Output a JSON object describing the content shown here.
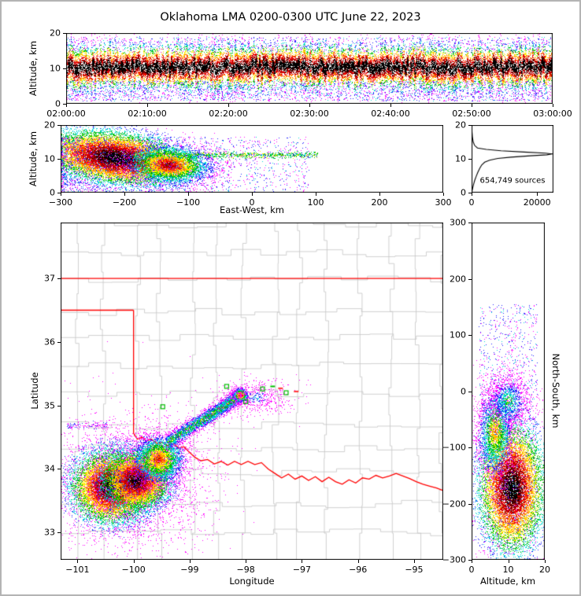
{
  "title": "Oklahoma LMA 0200-0300 UTC June 22, 2023",
  "colors": {
    "background": "#ffffff",
    "page_border": "#b4b4b4",
    "frame": "#000000",
    "county": "#c4c4c4",
    "state_border": "#ff0000",
    "station": "#00bb00",
    "hist_line": "#000000"
  },
  "colormap_bands": [
    {
      "t": 0.45,
      "c": "#000000"
    },
    {
      "t": 0.75,
      "c": "#8b0000"
    },
    {
      "t": 1.05,
      "c": "#ee0000"
    },
    {
      "t": 1.35,
      "c": "#ff8c00"
    },
    {
      "t": 1.65,
      "c": "#ffee00"
    },
    {
      "t": 2.05,
      "c": "#00c000"
    },
    {
      "t": 2.45,
      "c": "#00d8d8"
    },
    {
      "t": 2.85,
      "c": "#2020ff"
    },
    {
      "t": 99,
      "c": "#ff00ff"
    }
  ],
  "chart_data": [
    {
      "id": "time",
      "type": "scatter",
      "xlabel": "",
      "ylabel": "Altitude, km",
      "xlim": [
        0,
        3600
      ],
      "ylim": [
        0,
        20
      ],
      "xticks": [
        {
          "v": 0,
          "label": "02:00:00"
        },
        {
          "v": 600,
          "label": "02:10:00"
        },
        {
          "v": 1200,
          "label": "02:20:00"
        },
        {
          "v": 1800,
          "label": "02:30:00"
        },
        {
          "v": 2400,
          "label": "02:40:00"
        },
        {
          "v": 3000,
          "label": "02:50:00"
        },
        {
          "v": 3600,
          "label": "03:00:00"
        }
      ],
      "yticks": [
        {
          "v": 0,
          "label": "0"
        },
        {
          "v": 10,
          "label": "10"
        },
        {
          "v": 20,
          "label": "20"
        }
      ],
      "clusters": [
        {
          "type": "band",
          "x0": 0,
          "x1": 3600,
          "cy": 10.4,
          "sy": 2.6,
          "cols": 260,
          "count": 30000
        },
        {
          "type": "speck",
          "x0": 0,
          "x1": 3600,
          "y0": 0.8,
          "y1": 6.5,
          "count": 2400,
          "offset": 2.5
        },
        {
          "type": "speck",
          "x0": 0,
          "x1": 3600,
          "y0": 14.5,
          "y1": 18.8,
          "count": 1100,
          "offset": 2.5
        }
      ]
    },
    {
      "id": "ew",
      "type": "scatter",
      "xlabel": "East-West, km",
      "ylabel": "Altitude, km",
      "xlim": [
        -300,
        300
      ],
      "ylim": [
        0,
        20
      ],
      "xticks": [
        {
          "v": -300,
          "label": "−300"
        },
        {
          "v": -200,
          "label": "−200"
        },
        {
          "v": -100,
          "label": "−100"
        },
        {
          "v": 0,
          "label": "0"
        },
        {
          "v": 100,
          "label": "100"
        },
        {
          "v": 200,
          "label": "200"
        },
        {
          "v": 300,
          "label": "300"
        }
      ],
      "yticks": [
        {
          "v": 0,
          "label": "0"
        },
        {
          "v": 10,
          "label": "10"
        },
        {
          "v": 20,
          "label": "20"
        }
      ],
      "clusters": [
        {
          "type": "gauss",
          "cx": -215,
          "cy": 10.3,
          "sx": 55,
          "sy": 3.6,
          "tilt": -0.02,
          "count": 15000
        },
        {
          "type": "gauss",
          "cx": -130,
          "cy": 8.2,
          "sx": 30,
          "sy": 2.6,
          "tilt": -0.01,
          "offset": 0.5,
          "count": 5200
        },
        {
          "type": "hline",
          "x0": -185,
          "x1": 105,
          "cy": 11.1,
          "sy": 0.45,
          "offset": 1.5,
          "count": 1000
        },
        {
          "type": "speck",
          "x0": -300,
          "x1": 90,
          "y0": 0.3,
          "y1": 16.5,
          "bias": 1.9,
          "count": 2400,
          "offset": 2.5
        }
      ]
    },
    {
      "id": "hist",
      "type": "line",
      "xlabel": "",
      "ylabel": "",
      "annotation": "654,749 sources",
      "xlim": [
        0,
        25000
      ],
      "ylim": [
        0,
        20
      ],
      "xticks": [
        {
          "v": 0,
          "label": "0"
        },
        {
          "v": 20000,
          "label": "20000"
        }
      ],
      "yticks": [
        {
          "v": 0,
          "label": "0"
        },
        {
          "v": 10,
          "label": "10"
        },
        {
          "v": 20,
          "label": "20"
        }
      ],
      "points": [
        [
          60,
          20
        ],
        [
          120,
          18
        ],
        [
          250,
          16.5
        ],
        [
          500,
          15
        ],
        [
          900,
          14
        ],
        [
          1800,
          13.2
        ],
        [
          4500,
          12.8
        ],
        [
          9000,
          12.4
        ],
        [
          16000,
          12.0
        ],
        [
          22500,
          11.7
        ],
        [
          24600,
          11.45
        ],
        [
          23000,
          11.2
        ],
        [
          18000,
          10.9
        ],
        [
          12000,
          10.5
        ],
        [
          8000,
          10.1
        ],
        [
          5500,
          9.6
        ],
        [
          4000,
          9.0
        ],
        [
          3100,
          8.2
        ],
        [
          2500,
          7.2
        ],
        [
          1900,
          6.0
        ],
        [
          1400,
          4.8
        ],
        [
          950,
          3.6
        ],
        [
          600,
          2.4
        ],
        [
          300,
          1.2
        ],
        [
          120,
          0.4
        ],
        [
          50,
          0
        ]
      ]
    },
    {
      "id": "map",
      "type": "scatter",
      "xlabel": "Longitude",
      "ylabel": "Latitude",
      "xlim": [
        -101.3,
        -94.48
      ],
      "ylim": [
        32.57,
        37.88
      ],
      "xticks": [
        {
          "v": -101,
          "label": "−101"
        },
        {
          "v": -100,
          "label": "−100"
        },
        {
          "v": -99,
          "label": "−99"
        },
        {
          "v": -98,
          "label": "−98"
        },
        {
          "v": -97,
          "label": "−97"
        },
        {
          "v": -96,
          "label": "−96"
        },
        {
          "v": -95,
          "label": "−95"
        }
      ],
      "yticks": [
        {
          "v": 33,
          "label": "33"
        },
        {
          "v": 34,
          "label": "34"
        },
        {
          "v": 35,
          "label": "35"
        },
        {
          "v": 36,
          "label": "36"
        },
        {
          "v": 37,
          "label": "37"
        }
      ],
      "counties": {
        "lon_step": 0.5,
        "lat_step": 0.42,
        "jitter": 0.12,
        "seed": 11
      },
      "state_lines": [
        {
          "name": "kansas-oklahoma-border",
          "pts": [
            [
              -101.3,
              37
            ],
            [
              -94.48,
              37
            ]
          ]
        },
        {
          "name": "oklahoma-panhandle-south",
          "pts": [
            [
              -101.3,
              36.5
            ],
            [
              -100,
              36.5
            ]
          ]
        },
        {
          "name": "texas-panhandle-east",
          "pts": [
            [
              -100,
              36.5
            ],
            [
              -100,
              34.56
            ]
          ]
        },
        {
          "name": "red-river-border",
          "pts": [
            [
              -100.0,
              34.56
            ],
            [
              -99.93,
              34.47
            ],
            [
              -99.85,
              34.5
            ],
            [
              -99.77,
              34.44
            ],
            [
              -99.68,
              34.47
            ],
            [
              -99.58,
              34.4
            ],
            [
              -99.48,
              34.42
            ],
            [
              -99.38,
              34.36
            ],
            [
              -99.28,
              34.4
            ],
            [
              -99.2,
              34.33
            ],
            [
              -99.1,
              34.35
            ],
            [
              -99.0,
              34.26
            ],
            [
              -98.9,
              34.18
            ],
            [
              -98.8,
              34.13
            ],
            [
              -98.68,
              34.15
            ],
            [
              -98.56,
              34.08
            ],
            [
              -98.44,
              34.12
            ],
            [
              -98.32,
              34.06
            ],
            [
              -98.2,
              34.12
            ],
            [
              -98.08,
              34.07
            ],
            [
              -97.96,
              34.12
            ],
            [
              -97.84,
              34.07
            ],
            [
              -97.72,
              34.1
            ],
            [
              -97.6,
              34.0
            ],
            [
              -97.48,
              33.93
            ],
            [
              -97.36,
              33.86
            ],
            [
              -97.24,
              33.92
            ],
            [
              -97.12,
              33.84
            ],
            [
              -97.0,
              33.89
            ],
            [
              -96.88,
              33.82
            ],
            [
              -96.76,
              33.88
            ],
            [
              -96.64,
              33.8
            ],
            [
              -96.52,
              33.87
            ],
            [
              -96.4,
              33.8
            ],
            [
              -96.28,
              33.76
            ],
            [
              -96.16,
              33.83
            ],
            [
              -96.04,
              33.78
            ],
            [
              -95.92,
              33.86
            ],
            [
              -95.8,
              33.84
            ],
            [
              -95.68,
              33.9
            ],
            [
              -95.56,
              33.86
            ],
            [
              -95.44,
              33.89
            ],
            [
              -95.32,
              33.93
            ],
            [
              -95.2,
              33.89
            ],
            [
              -95.08,
              33.85
            ],
            [
              -94.96,
              33.8
            ],
            [
              -94.84,
              33.76
            ],
            [
              -94.72,
              33.73
            ],
            [
              -94.6,
              33.7
            ],
            [
              -94.48,
              33.66
            ]
          ]
        }
      ],
      "clusters": [
        {
          "type": "gauss",
          "cx": -100.38,
          "cy": 33.72,
          "sx": 0.34,
          "sy": 0.27,
          "count": 12000
        },
        {
          "type": "gauss",
          "cx": -99.95,
          "cy": 33.82,
          "sx": 0.3,
          "sy": 0.23,
          "offset": 0.15,
          "count": 9000
        },
        {
          "type": "gauss",
          "cx": -99.55,
          "cy": 34.15,
          "sx": 0.23,
          "sy": 0.19,
          "offset": 0.85,
          "count": 4200
        },
        {
          "type": "gauss",
          "cx": -100.15,
          "cy": 33.78,
          "sx": 0.8,
          "sy": 0.55,
          "offset": 2.45,
          "count": 2600
        },
        {
          "type": "ridge",
          "sigma": 0.06,
          "offset": 1.45,
          "count": 4200,
          "pts": [
            [
              -99.38,
              34.42
            ],
            [
              -99.05,
              34.62
            ],
            [
              -98.75,
              34.78
            ],
            [
              -98.5,
              34.92
            ],
            [
              -98.28,
              35.05
            ],
            [
              -98.06,
              35.17
            ]
          ]
        },
        {
          "type": "gauss",
          "cx": -98.09,
          "cy": 35.16,
          "sx": 0.06,
          "sy": 0.05,
          "offset": 0.6,
          "count": 900
        },
        {
          "type": "gauss",
          "cx": -97.82,
          "cy": 35.13,
          "sx": 0.32,
          "sy": 0.13,
          "offset": 2.35,
          "count": 650
        },
        {
          "type": "hline",
          "x0": -101.18,
          "x1": -100.45,
          "cy": 34.68,
          "sy": 0.025,
          "offset": 2.6,
          "count": 130
        }
      ],
      "stations": [
        {
          "lon": -99.48,
          "lat": 34.98
        },
        {
          "lon": -98.34,
          "lat": 35.3
        },
        {
          "lon": -98.0,
          "lat": 35.06
        },
        {
          "lon": -97.7,
          "lat": 35.26
        },
        {
          "lon": -97.28,
          "lat": 35.2
        }
      ],
      "dashes": [
        {
          "lon": -97.38,
          "lat": 35.27,
          "c": "#ff3333"
        },
        {
          "lon": -97.1,
          "lat": 35.22,
          "c": "#ff3333"
        },
        {
          "lon": -97.52,
          "lat": 35.3,
          "c": "#00bb00"
        }
      ]
    },
    {
      "id": "ns",
      "type": "scatter",
      "xlabel": "Altitude, km",
      "ylabel": "North-South, km",
      "xlim": [
        0,
        20
      ],
      "ylim": [
        -300,
        300
      ],
      "xticks": [
        {
          "v": 0,
          "label": "0"
        },
        {
          "v": 10,
          "label": "10"
        },
        {
          "v": 20,
          "label": "20"
        }
      ],
      "yticks": [
        {
          "v": 300,
          "label": "300"
        },
        {
          "v": 200,
          "label": "200"
        },
        {
          "v": 100,
          "label": "100"
        },
        {
          "v": 0,
          "label": "0"
        },
        {
          "v": -100,
          "label": "−100"
        },
        {
          "v": -200,
          "label": "−200"
        },
        {
          "v": -300,
          "label": "−300"
        }
      ],
      "clusters": [
        {
          "type": "gauss",
          "cx": 11,
          "cy": -172,
          "sx": 4.2,
          "sy": 55,
          "count": 11000
        },
        {
          "type": "gauss",
          "cx": 6.5,
          "cy": -75,
          "sx": 2.4,
          "sy": 40,
          "offset": 1.1,
          "count": 3000
        },
        {
          "type": "gauss",
          "cx": 10,
          "cy": -18,
          "sx": 3,
          "sy": 26,
          "offset": 1.7,
          "count": 1500
        },
        {
          "type": "speck",
          "x0": 2,
          "x1": 18,
          "y0": -290,
          "y1": 155,
          "count": 1500,
          "offset": 2.5
        }
      ]
    }
  ]
}
